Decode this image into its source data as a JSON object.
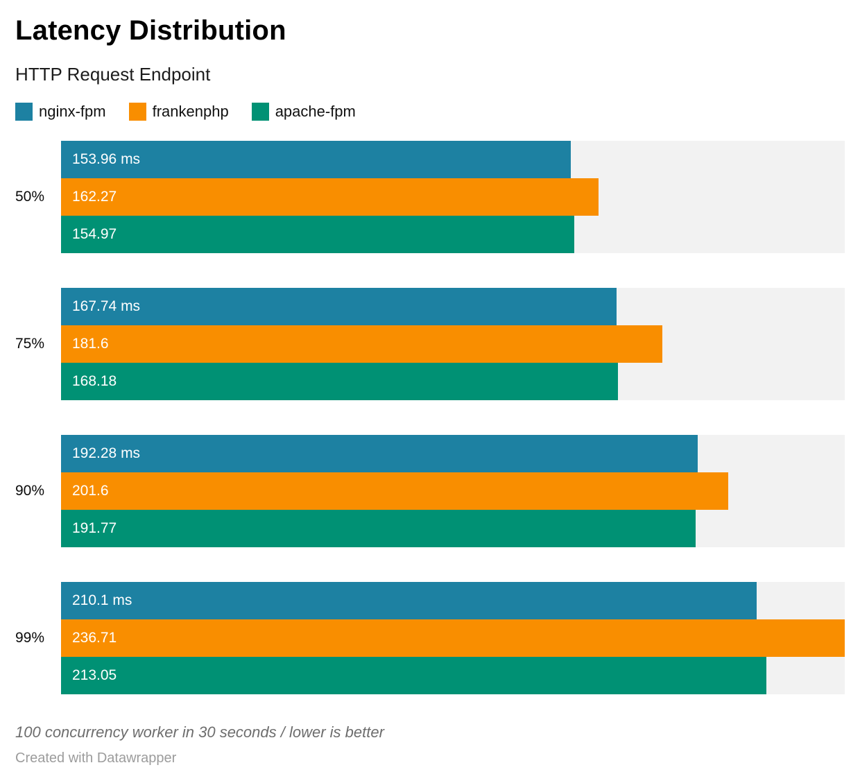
{
  "title": "Latency Distribution",
  "subtitle": "HTTP Request Endpoint",
  "footer": {
    "note": "100 concurrency worker in 30 seconds / lower is better",
    "credit": "Created with Datawrapper"
  },
  "chart_data": {
    "type": "bar",
    "orientation": "horizontal",
    "unit": "ms",
    "title": "Latency Distribution",
    "subtitle": "HTTP Request Endpoint",
    "categories": [
      "50%",
      "75%",
      "90%",
      "99%"
    ],
    "series": [
      {
        "name": "nginx-fpm",
        "color": "#1d81a2",
        "values": [
          153.96,
          167.74,
          192.28,
          210.1
        ],
        "labels": [
          "153.96 ms",
          "167.74 ms",
          "192.28 ms",
          "210.1 ms"
        ]
      },
      {
        "name": "frankenphp",
        "color": "#f98e00",
        "values": [
          162.27,
          181.6,
          201.6,
          236.71
        ],
        "labels": [
          "162.27",
          "181.6",
          "201.6",
          "236.71"
        ]
      },
      {
        "name": "apache-fpm",
        "color": "#009174",
        "values": [
          154.97,
          168.18,
          191.77,
          213.05
        ],
        "labels": [
          "154.97",
          "168.18",
          "191.77",
          "213.05"
        ]
      }
    ],
    "xlim": [
      0,
      236.71
    ],
    "grid": false,
    "legend_position": "top",
    "track_color": "#f2f2f2",
    "value_label_color": "#ffffff"
  }
}
